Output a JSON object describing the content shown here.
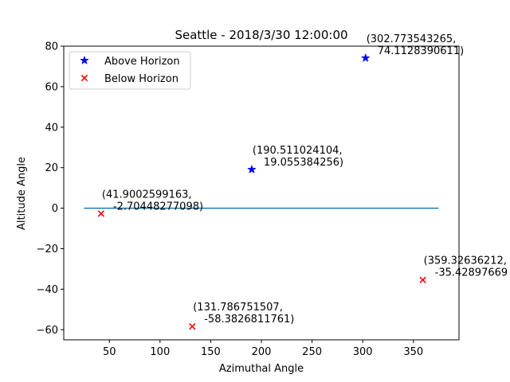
{
  "chart_data": {
    "type": "scatter",
    "title": "Seattle - 2018/3/30 12:00:00",
    "xlabel": "Azimuthal Angle",
    "ylabel": "Altitude Angle",
    "xlim": [
      5,
      395
    ],
    "ylim": [
      -65,
      80
    ],
    "xticks": [
      50,
      100,
      150,
      200,
      250,
      300,
      350
    ],
    "yticks": [
      -60,
      -40,
      -20,
      0,
      20,
      40,
      60,
      80
    ],
    "grid": false,
    "legend_position": "top-left",
    "horizon_line": {
      "x": [
        25,
        375
      ],
      "y": 0,
      "color": "#1f77b4"
    },
    "series": [
      {
        "name": "Above Horizon",
        "marker": "star",
        "color": "#0000ff",
        "points": [
          {
            "x": 302.773543265,
            "y": 74.1128390611,
            "label_line1": "(302.773543265,",
            "label_line2": "74.1128390611)"
          },
          {
            "x": 190.511024104,
            "y": 19.055384256,
            "label_line1": "(190.511024104,",
            "label_line2": "19.055384256)"
          }
        ]
      },
      {
        "name": "Below Horizon",
        "marker": "x",
        "color": "#ff0000",
        "points": [
          {
            "x": 41.9002599163,
            "y": -2.70448277098,
            "label_line1": "(41.9002599163,",
            "label_line2": "-2.70448277098)"
          },
          {
            "x": 131.786751507,
            "y": -58.3826811761,
            "label_line1": "(131.786751507,",
            "label_line2": "-58.3826811761)"
          },
          {
            "x": 359.326362125,
            "y": -35.4289766954,
            "label_line1": "(359.32636212,",
            "label_line2": "-35.42897669"
          }
        ]
      }
    ]
  }
}
